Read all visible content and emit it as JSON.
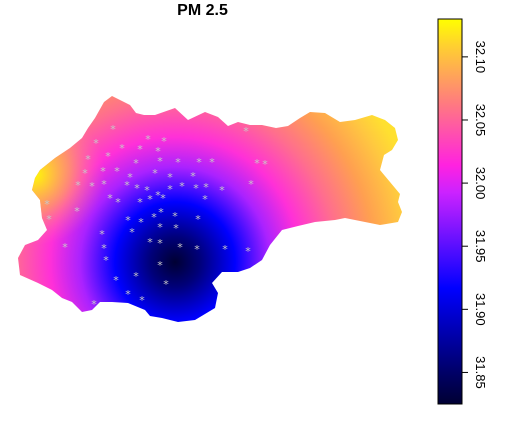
{
  "title": "PM 2.5",
  "legend": {
    "ticks": [
      {
        "label": "31.85",
        "value": 31.85
      },
      {
        "label": "31.90",
        "value": 31.9
      },
      {
        "label": "31.95",
        "value": 31.95
      },
      {
        "label": "32.00",
        "value": 32.0
      },
      {
        "label": "32.05",
        "value": 32.05
      },
      {
        "label": "32.10",
        "value": 32.1
      }
    ],
    "range": [
      31.825,
      32.13
    ],
    "colors": [
      "#000033",
      "#0000ff",
      "#ff00ff",
      "#ffff00"
    ]
  },
  "marker_symbol": "*",
  "marker_color": "#c8c8c8"
}
